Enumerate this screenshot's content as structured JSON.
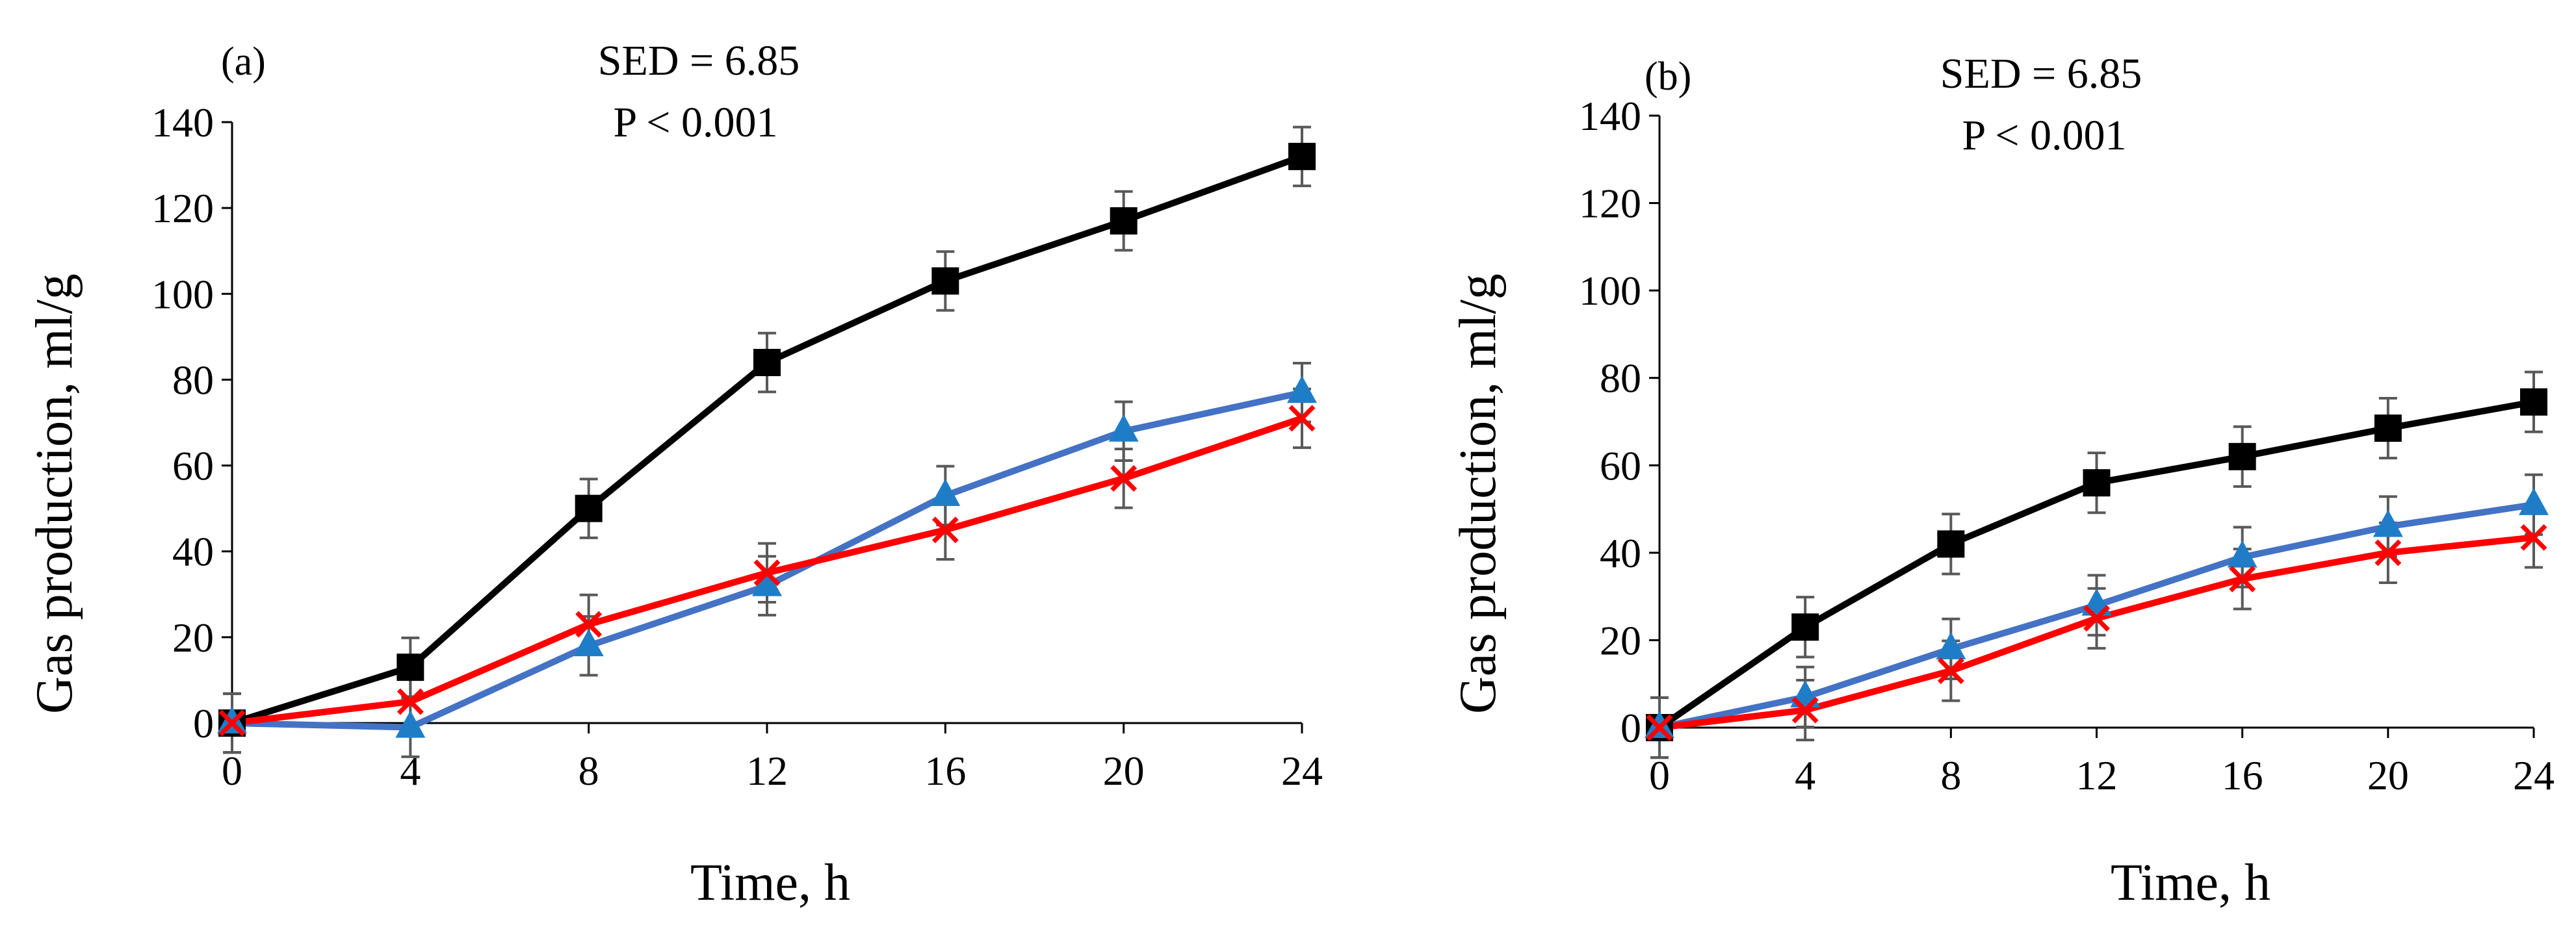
{
  "chart_data": [
    {
      "panel_label": "(a)",
      "type": "line",
      "annotations": [
        "SED = 6.85",
        "P < 0.001"
      ],
      "xlabel": "Time, h",
      "ylabel": "Gas production, ml/g",
      "x": [
        0,
        4,
        8,
        12,
        16,
        20,
        24
      ],
      "xlim": [
        0,
        24
      ],
      "ylim": [
        0,
        140
      ],
      "xticks": [
        0,
        4,
        8,
        12,
        16,
        20,
        24
      ],
      "yticks": [
        0,
        20,
        40,
        60,
        80,
        100,
        120,
        140
      ],
      "grid": false,
      "error_bar": 6.85,
      "series": [
        {
          "color": "#000000",
          "marker": "square",
          "values": [
            0,
            13,
            50,
            84,
            103,
            117,
            132
          ]
        },
        {
          "color": "#4472C4",
          "marker": "triangle",
          "marker_color": "#1F7DC8",
          "values": [
            0,
            -1,
            18,
            32,
            53,
            68,
            77
          ]
        },
        {
          "color": "#FF0000",
          "marker": "x",
          "values": [
            0,
            5,
            23,
            35,
            45,
            57,
            71
          ]
        }
      ]
    },
    {
      "panel_label": "(b)",
      "type": "line",
      "annotations": [
        "SED = 6.85",
        "P < 0.001"
      ],
      "xlabel": "Time, h",
      "ylabel": "Gas production, ml/g",
      "x": [
        0,
        4,
        8,
        12,
        16,
        20,
        24
      ],
      "xlim": [
        0,
        24
      ],
      "ylim": [
        0,
        140
      ],
      "xticks": [
        0,
        4,
        8,
        12,
        16,
        20,
        24
      ],
      "yticks": [
        0,
        20,
        40,
        60,
        80,
        100,
        120,
        140
      ],
      "grid": false,
      "error_bar": 6.85,
      "series": [
        {
          "color": "#000000",
          "marker": "square",
          "values": [
            0,
            23,
            42,
            56,
            62,
            68.5,
            74.5
          ]
        },
        {
          "color": "#4472C4",
          "marker": "triangle",
          "marker_color": "#1F7DC8",
          "values": [
            0,
            7,
            18,
            28,
            39,
            46,
            51
          ]
        },
        {
          "color": "#FF0000",
          "marker": "x",
          "values": [
            0,
            4,
            13,
            25,
            34,
            40,
            43.5
          ]
        }
      ]
    }
  ]
}
